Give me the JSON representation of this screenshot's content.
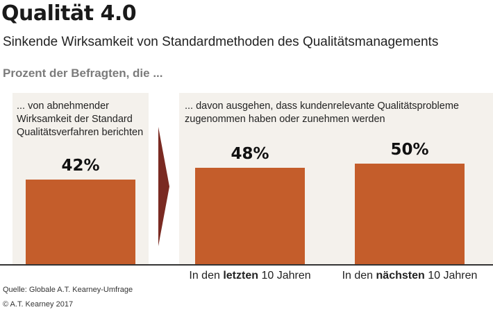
{
  "header": {
    "title": "Qualität 4.0",
    "subtitle": "Sinkende Wirksamkeit von Standardmethoden des Qualitätsmanagements",
    "section_label": "Prozent der Befragten, die ..."
  },
  "panels": {
    "left_text": "... von abnehmender Wirksamkeit der Standard Qualitätsverfahren berichten",
    "right_text": "... davon ausgehen, dass kundenrelevante Qualitätsprobleme zugenommen haben oder zunehmen werden"
  },
  "chart_data": {
    "type": "bar",
    "categories": [
      "",
      "In den letzten 10 Jahren",
      "In den nächsten 10 Jahren"
    ],
    "category_parts": [
      {
        "pre": "",
        "bold": "",
        "post": ""
      },
      {
        "pre": "In den ",
        "bold": "letzten",
        "post": " 10 Jahren"
      },
      {
        "pre": "In den ",
        "bold": "nächsten",
        "post": " 10 Jahren"
      }
    ],
    "values": [
      42,
      48,
      50
    ],
    "value_labels": [
      "42%",
      "48%",
      "50%"
    ],
    "unit": "%",
    "ylim": [
      0,
      100
    ],
    "grid": false,
    "colors": {
      "bar": "#c45d2b",
      "panel": "#f4f1ec",
      "arrow": "#7a2a22"
    }
  },
  "footer": {
    "source": "Quelle: Globale A.T. Kearney-Umfrage",
    "copyright": "© A.T. Kearney 2017"
  }
}
